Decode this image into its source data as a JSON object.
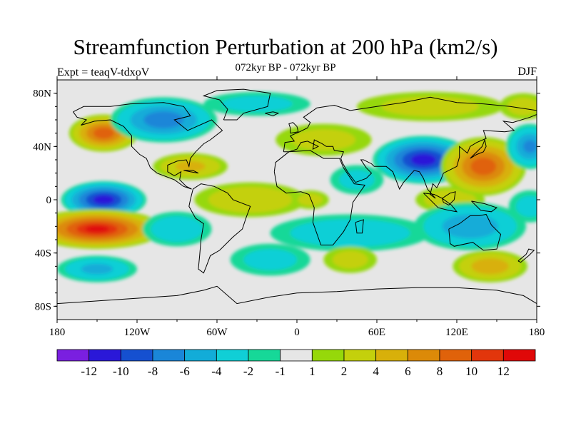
{
  "title": "Streamfunction Perturbation at 200 hPa (km2/s)",
  "subtitle": "072kyr BP - 072kyr BP",
  "experiment": "Expt = teaqV-tdxoV",
  "season": "DJF",
  "map": {
    "lon_range": [
      -180,
      180
    ],
    "lat_range": [
      -90,
      90
    ],
    "lat_ticks": [
      {
        "value": 80,
        "label": "80N"
      },
      {
        "value": 40,
        "label": "40N"
      },
      {
        "value": 0,
        "label": "0"
      },
      {
        "value": -40,
        "label": "40S"
      },
      {
        "value": -80,
        "label": "80S"
      }
    ],
    "lon_ticks": [
      {
        "value": -180,
        "label": "180"
      },
      {
        "value": -120,
        "label": "120W"
      },
      {
        "value": -60,
        "label": "60W"
      },
      {
        "value": 0,
        "label": "0"
      },
      {
        "value": 60,
        "label": "60E"
      },
      {
        "value": 120,
        "label": "120E"
      },
      {
        "value": 180,
        "label": "180"
      }
    ],
    "background_color": "#e6e6e6",
    "features": [
      {
        "lon": -145,
        "lat": 50,
        "value": 9,
        "rx": 26,
        "ry": 14
      },
      {
        "lon": -145,
        "lat": 0,
        "value": -11,
        "rx": 32,
        "ry": 14
      },
      {
        "lon": -150,
        "lat": -22,
        "value": 12,
        "rx": 50,
        "ry": 15
      },
      {
        "lon": -150,
        "lat": -52,
        "value": -4,
        "rx": 30,
        "ry": 10
      },
      {
        "lon": -100,
        "lat": 60,
        "value": -7,
        "rx": 40,
        "ry": 17
      },
      {
        "lon": -80,
        "lat": 25,
        "value": 4,
        "rx": 28,
        "ry": 10
      },
      {
        "lon": -90,
        "lat": -22,
        "value": -3,
        "rx": 26,
        "ry": 13
      },
      {
        "lon": -30,
        "lat": 72,
        "value": -2,
        "rx": 40,
        "ry": 9
      },
      {
        "lon": -35,
        "lat": 0,
        "value": 3,
        "rx": 42,
        "ry": 13
      },
      {
        "lon": -20,
        "lat": -45,
        "value": -2,
        "rx": 30,
        "ry": 12
      },
      {
        "lon": 20,
        "lat": 45,
        "value": 2,
        "rx": 36,
        "ry": 12
      },
      {
        "lon": 10,
        "lat": 0,
        "value": 2,
        "rx": 14,
        "ry": 7
      },
      {
        "lon": 40,
        "lat": -25,
        "value": -3,
        "rx": 60,
        "ry": 14
      },
      {
        "lon": 45,
        "lat": 15,
        "value": -2,
        "rx": 20,
        "ry": 11
      },
      {
        "lon": 40,
        "lat": -45,
        "value": 2,
        "rx": 20,
        "ry": 10
      },
      {
        "lon": 95,
        "lat": 30,
        "value": -11,
        "rx": 38,
        "ry": 18
      },
      {
        "lon": 115,
        "lat": 0,
        "value": 3,
        "rx": 26,
        "ry": 10
      },
      {
        "lon": 100,
        "lat": 70,
        "value": 2,
        "rx": 55,
        "ry": 11
      },
      {
        "lon": 140,
        "lat": 25,
        "value": 9,
        "rx": 32,
        "ry": 22
      },
      {
        "lon": 130,
        "lat": -20,
        "value": -5,
        "rx": 42,
        "ry": 18
      },
      {
        "lon": 145,
        "lat": -50,
        "value": 5,
        "rx": 28,
        "ry": 12
      },
      {
        "lon": 175,
        "lat": 40,
        "value": -6,
        "rx": 18,
        "ry": 17
      },
      {
        "lon": 175,
        "lat": -5,
        "value": -2,
        "rx": 16,
        "ry": 12
      },
      {
        "lon": 170,
        "lat": 70,
        "value": 2,
        "rx": 18,
        "ry": 10
      }
    ]
  },
  "colorbar": {
    "levels": [
      -12,
      -10,
      -8,
      -6,
      -4,
      -2,
      -1,
      1,
      2,
      4,
      6,
      8,
      10,
      12
    ],
    "labels": [
      "-12",
      "-10",
      "-8",
      "-6",
      "-4",
      "-2",
      "-1",
      "1",
      "2",
      "4",
      "6",
      "8",
      "10",
      "12"
    ],
    "colors": [
      "#7a1fe0",
      "#2a18d8",
      "#1550d0",
      "#1a86d8",
      "#12acd8",
      "#10cfd6",
      "#16d898",
      "#e6e6e6",
      "#96d80a",
      "#c4d00c",
      "#d8b00a",
      "#dc8a08",
      "#e0620a",
      "#e2360c",
      "#e00808"
    ]
  }
}
